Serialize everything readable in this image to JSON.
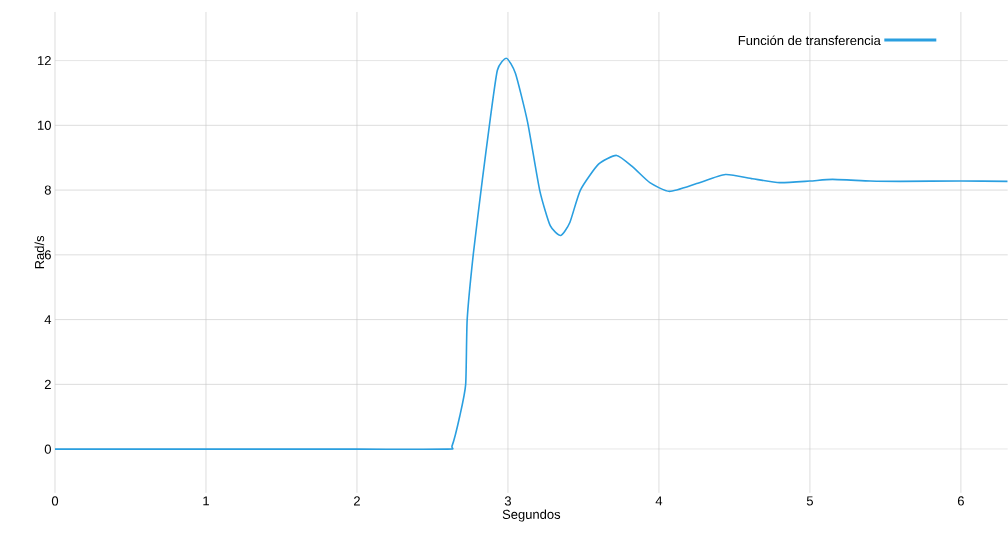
{
  "chart_data": {
    "type": "line",
    "xlabel": "Segundos",
    "ylabel": "Rad/s",
    "xlim": [
      0,
      6.31
    ],
    "ylim": [
      -1.35,
      13.5
    ],
    "xticks": [
      0,
      1,
      2,
      3,
      4,
      5,
      6
    ],
    "yticks": [
      0,
      2,
      4,
      6,
      8,
      10,
      12
    ],
    "grid": true,
    "legend": "top right",
    "x": [
      0,
      1,
      2,
      2.6,
      2.63,
      2.68,
      2.72,
      2.73,
      2.77,
      2.83,
      2.88,
      2.93,
      2.99,
      3.05,
      3.13,
      3.21,
      3.28,
      3.35,
      3.41,
      3.48,
      3.6,
      3.72,
      3.83,
      3.94,
      4.07,
      4.25,
      4.44,
      4.62,
      4.8,
      5.0,
      5.15,
      5.4,
      5.6,
      6.0,
      6.31
    ],
    "series": [
      {
        "name": "Función de transferencia",
        "color": "#2a9fe0",
        "values": [
          0,
          0,
          0,
          0,
          0.1,
          1,
          2,
          4,
          6,
          8.3,
          10.1,
          11.7,
          12.07,
          11.6,
          10.1,
          8.0,
          6.9,
          6.6,
          7.0,
          8.0,
          8.8,
          9.07,
          8.7,
          8.23,
          7.96,
          8.2,
          8.48,
          8.35,
          8.23,
          8.28,
          8.33,
          8.28,
          8.27,
          8.28,
          8.27
        ]
      }
    ]
  }
}
